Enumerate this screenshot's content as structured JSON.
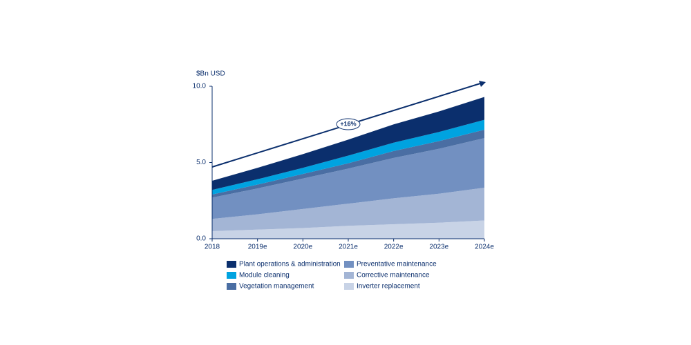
{
  "chart_data": {
    "type": "stacked-area",
    "y_label": "$Bn USD",
    "annotation": "+16%",
    "categories": [
      "2018",
      "2019e",
      "2020e",
      "2021e",
      "2022e",
      "2023e",
      "2024e"
    ],
    "ylim": [
      0,
      10
    ],
    "yticks": [
      {
        "value": 0,
        "label": "0.0"
      },
      {
        "value": 5,
        "label": "5.0"
      },
      {
        "value": 10,
        "label": "10.0"
      }
    ],
    "series": [
      {
        "name": "Plant operations & administration",
        "color": "#0b2f6d",
        "values": [
          0.6,
          0.75,
          0.9,
          1.05,
          1.2,
          1.35,
          1.5
        ]
      },
      {
        "name": "Module cleaning",
        "color": "#00a3e0",
        "values": [
          0.3,
          0.35,
          0.4,
          0.5,
          0.55,
          0.6,
          0.65
        ]
      },
      {
        "name": "Vegetation management",
        "color": "#4a6ea3",
        "values": [
          0.2,
          0.25,
          0.3,
          0.35,
          0.45,
          0.5,
          0.55
        ]
      },
      {
        "name": "Preventative maintenance",
        "color": "#7290c1",
        "values": [
          1.4,
          1.7,
          2.0,
          2.3,
          2.65,
          2.95,
          3.25
        ]
      },
      {
        "name": "Corrective maintenance",
        "color": "#a3b5d5",
        "values": [
          0.8,
          1.0,
          1.25,
          1.45,
          1.7,
          1.9,
          2.15
        ]
      },
      {
        "name": "Inverter replacement",
        "color": "#c8d3e6",
        "values": [
          0.5,
          0.6,
          0.7,
          0.85,
          0.95,
          1.05,
          1.2
        ]
      }
    ]
  }
}
